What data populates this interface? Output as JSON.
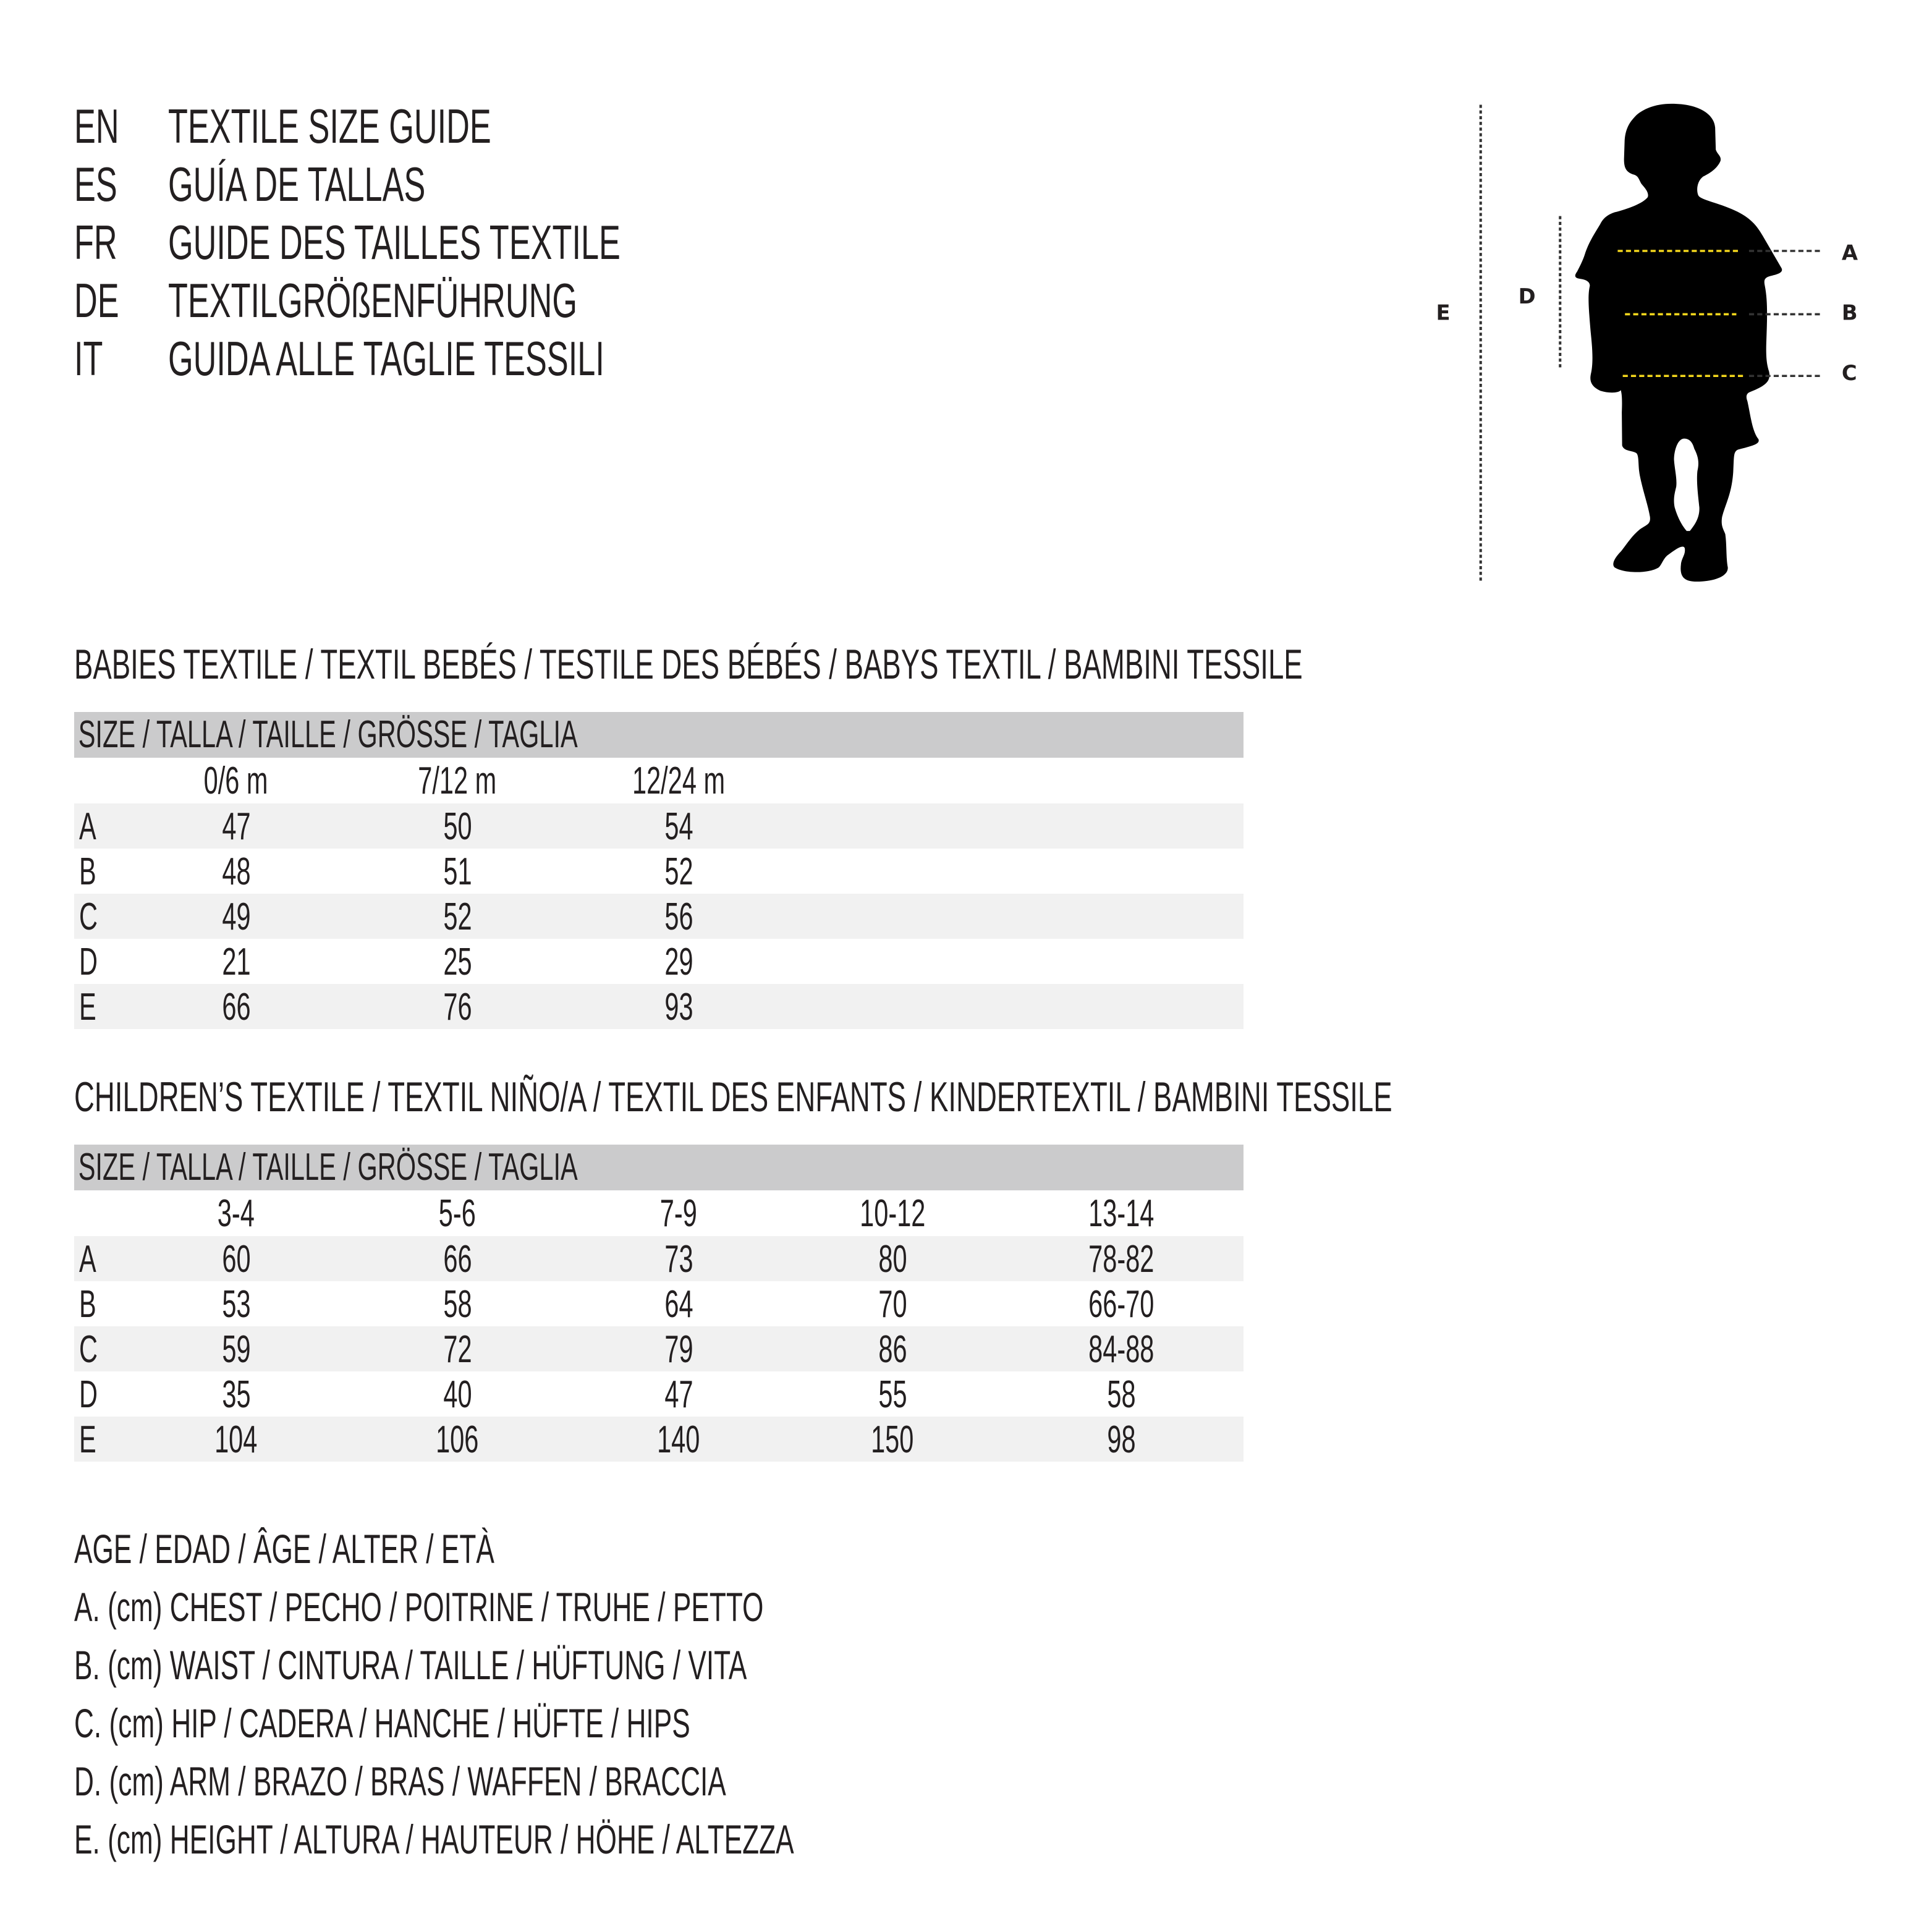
{
  "header": {
    "lines": [
      {
        "code": "EN",
        "title": "TEXTILE SIZE GUIDE"
      },
      {
        "code": "ES",
        "title": "GUÍA DE TALLAS"
      },
      {
        "code": "FR",
        "title": "GUIDE DES TAILLES TEXTILE"
      },
      {
        "code": "DE",
        "title": "TEXTILGRÖßENFÜHRUNG"
      },
      {
        "code": "IT",
        "title": "GUIDA ALLE TAGLIE TESSILI"
      }
    ]
  },
  "babies": {
    "title": "BABIES TEXTILE / TEXTIL BEBÉS / TESTILE DES BÉBÉS / BABYS TEXTIL / BAMBINI TESSILE",
    "size_header": "SIZE / TALLA / TAILLE / GRÖSSE / TAGLIA",
    "columns": [
      "0/6 m",
      "7/12 m",
      "12/24 m"
    ],
    "rows": [
      {
        "label": "A",
        "values": [
          "47",
          "50",
          "54"
        ]
      },
      {
        "label": "B",
        "values": [
          "48",
          "51",
          "52"
        ]
      },
      {
        "label": "C",
        "values": [
          "49",
          "52",
          "56"
        ]
      },
      {
        "label": "D",
        "values": [
          "21",
          "25",
          "29"
        ]
      },
      {
        "label": "E",
        "values": [
          "66",
          "76",
          "93"
        ]
      }
    ]
  },
  "children": {
    "title": "CHILDREN’S TEXTILE / TEXTIL NIÑO/A / TEXTIL DES ENFANTS / KINDERTEXTIL / BAMBINI TESSILE",
    "size_header": "SIZE / TALLA / TAILLE / GRÖSSE / TAGLIA",
    "columns": [
      "3-4",
      "5-6",
      "7-9",
      "10-12",
      "13-14"
    ],
    "rows": [
      {
        "label": "A",
        "values": [
          "60",
          "66",
          "73",
          "80",
          "78-82"
        ]
      },
      {
        "label": "B",
        "values": [
          "53",
          "58",
          "64",
          "70",
          "66-70"
        ]
      },
      {
        "label": "C",
        "values": [
          "59",
          "72",
          "79",
          "86",
          "84-88"
        ]
      },
      {
        "label": "D",
        "values": [
          "35",
          "40",
          "47",
          "55",
          "58"
        ]
      },
      {
        "label": "E",
        "values": [
          "104",
          "106",
          "140",
          "150",
          "98"
        ]
      }
    ]
  },
  "legend": [
    "AGE / EDAD / ÂGE / ALTER / ETÀ",
    "A. (cm) CHEST / PECHO / POITRINE / TRUHE / PETTO",
    "B. (cm) WAIST / CINTURA / TAILLE / HÜFTUNG / VITA",
    "C. (cm) HIP / CADERA / HANCHE / HÜFTE / HIPS",
    "D. (cm) ARM / BRAZO / BRAS / WAFFEN / BRACCIA",
    "E. (cm) HEIGHT / ALTURA / HAUTEUR / HÖHE / ALTEZZA"
  ],
  "figure": {
    "labels": {
      "A": "A",
      "B": "B",
      "C": "C",
      "D": "D",
      "E": "E"
    },
    "colors": {
      "silhouette": "#000000",
      "measure_line": "#f2d61c",
      "guide_line": "#333333"
    }
  }
}
